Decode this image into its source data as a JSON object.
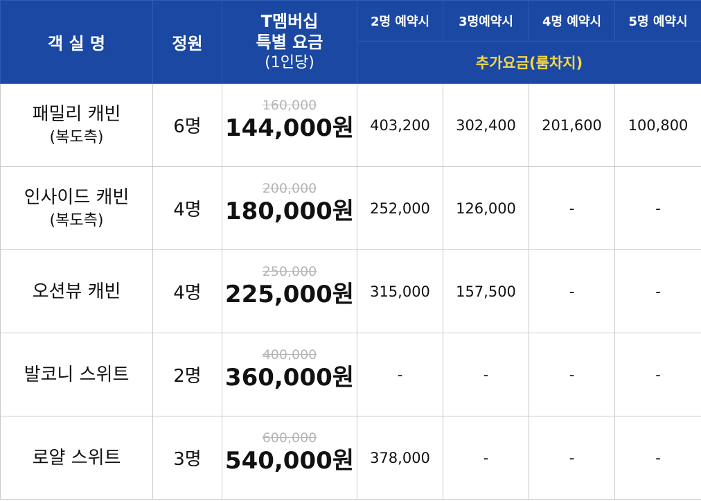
{
  "header": {
    "room_label": "객 실 명",
    "capacity_label": "정원",
    "price_label_line1": "T멤버십",
    "price_label_line2": "특별 요금",
    "price_label_line3": "(1인당)",
    "nights": [
      "2명 예약시",
      "3명예약시",
      "4명 예약시",
      "5명 예약시"
    ],
    "surcharge_label": "추가요금(룸차지)"
  },
  "rooms": [
    {
      "name": "패밀리 캐빈",
      "note": "(복도측)",
      "capacity": "6명",
      "original_price": "160,000",
      "price": "144,000원",
      "surcharges": [
        "403,200",
        "302,400",
        "201,600",
        "100,800"
      ]
    },
    {
      "name": "인사이드 캐빈",
      "note": "(복도측)",
      "capacity": "4명",
      "original_price": "200,000",
      "price": "180,000원",
      "surcharges": [
        "252,000",
        "126,000",
        "-",
        "-"
      ]
    },
    {
      "name": "오션뷰 캐빈",
      "note": "",
      "capacity": "4명",
      "original_price": "250,000",
      "price": "225,000원",
      "surcharges": [
        "315,000",
        "157,500",
        "-",
        "-"
      ]
    },
    {
      "name": "발코니 스위트",
      "note": "",
      "capacity": "2명",
      "original_price": "400,000",
      "price": "360,000원",
      "surcharges": [
        "-",
        "-",
        "-",
        "-"
      ]
    },
    {
      "name": "로얄 스위트",
      "note": "",
      "capacity": "3명",
      "original_price": "600,000",
      "price": "540,000원",
      "surcharges": [
        "378,000",
        "-",
        "-",
        "-"
      ]
    }
  ]
}
